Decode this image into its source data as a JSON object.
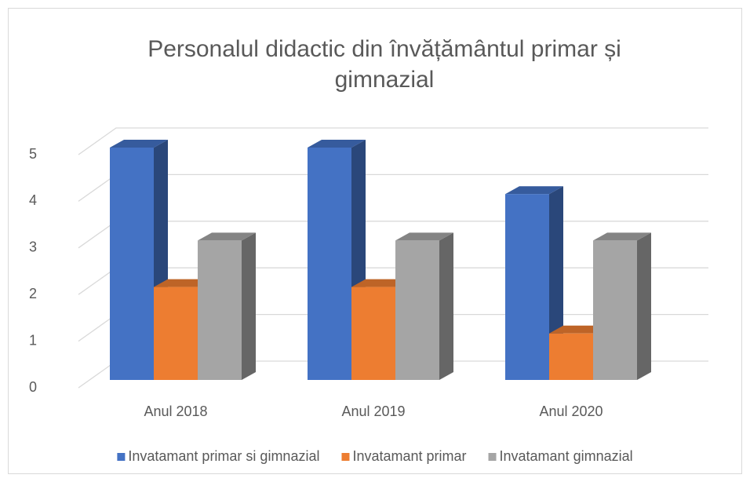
{
  "chart_data": {
    "type": "bar3d",
    "title": [
      "Personalul didactic din învățământul primar și",
      "gimnazial"
    ],
    "categories": [
      "Anul 2018",
      "Anul 2019",
      "Anul 2020"
    ],
    "series": [
      {
        "name": "Invatamant primar si gimnazial",
        "color": "#4472c4",
        "values": [
          5,
          5,
          4
        ]
      },
      {
        "name": "Invatamant primar",
        "color": "#ed7d31",
        "values": [
          2,
          2,
          1
        ]
      },
      {
        "name": "Invatamant gimnazial",
        "color": "#a5a5a5",
        "values": [
          3,
          3,
          3
        ]
      }
    ],
    "ylim": [
      0,
      5
    ],
    "yticks": [
      0,
      1,
      2,
      3,
      4,
      5
    ],
    "grid": true,
    "legend": "bottom"
  }
}
